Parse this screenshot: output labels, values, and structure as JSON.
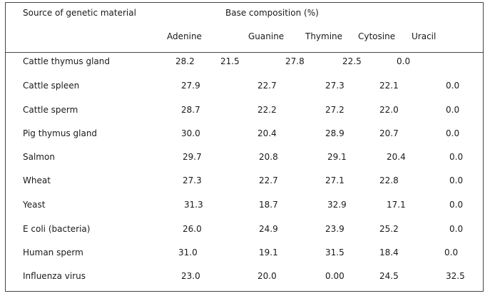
{
  "table": {
    "header": {
      "source_label": "Source of genetic material",
      "group_label": "Base composition (%)",
      "columns": [
        "Adenine",
        "Guanine",
        "Thymine",
        "Cytosine",
        "Uracil"
      ]
    },
    "rows": [
      {
        "source": "Cattle thymus gland",
        "values": [
          "28.2",
          "21.5",
          "27.8",
          "22.5",
          "0.0"
        ]
      },
      {
        "source": "Cattle spleen",
        "values": [
          "27.9",
          "22.7",
          "27.3",
          "22.1",
          "0.0"
        ]
      },
      {
        "source": "Cattle sperm",
        "values": [
          "28.7",
          "22.2",
          "27.2",
          "22.0",
          "0.0"
        ]
      },
      {
        "source": "Pig thymus gland",
        "values": [
          "30.0",
          "20.4",
          "28.9",
          "20.7",
          "0.0"
        ]
      },
      {
        "source": "Salmon",
        "values": [
          "29.7",
          "20.8",
          "29.1",
          "20.4",
          "0.0"
        ]
      },
      {
        "source": "Wheat",
        "values": [
          "27.3",
          "22.7",
          "27.1",
          "22.8",
          "0.0"
        ]
      },
      {
        "source": "Yeast",
        "values": [
          "31.3",
          "18.7",
          "32.9",
          "17.1",
          "0.0"
        ]
      },
      {
        "source": "E coli (bacteria)",
        "values": [
          "26.0",
          "24.9",
          "23.9",
          "25.2",
          "0.0"
        ]
      },
      {
        "source": "Human sperm",
        "values": [
          "31.0",
          "19.1",
          "31.5",
          "18.4",
          "0.0"
        ]
      },
      {
        "source": "Influenza virus",
        "values": [
          "23.0",
          "20.0",
          "0.00",
          "24.5",
          "32.5"
        ]
      }
    ]
  }
}
